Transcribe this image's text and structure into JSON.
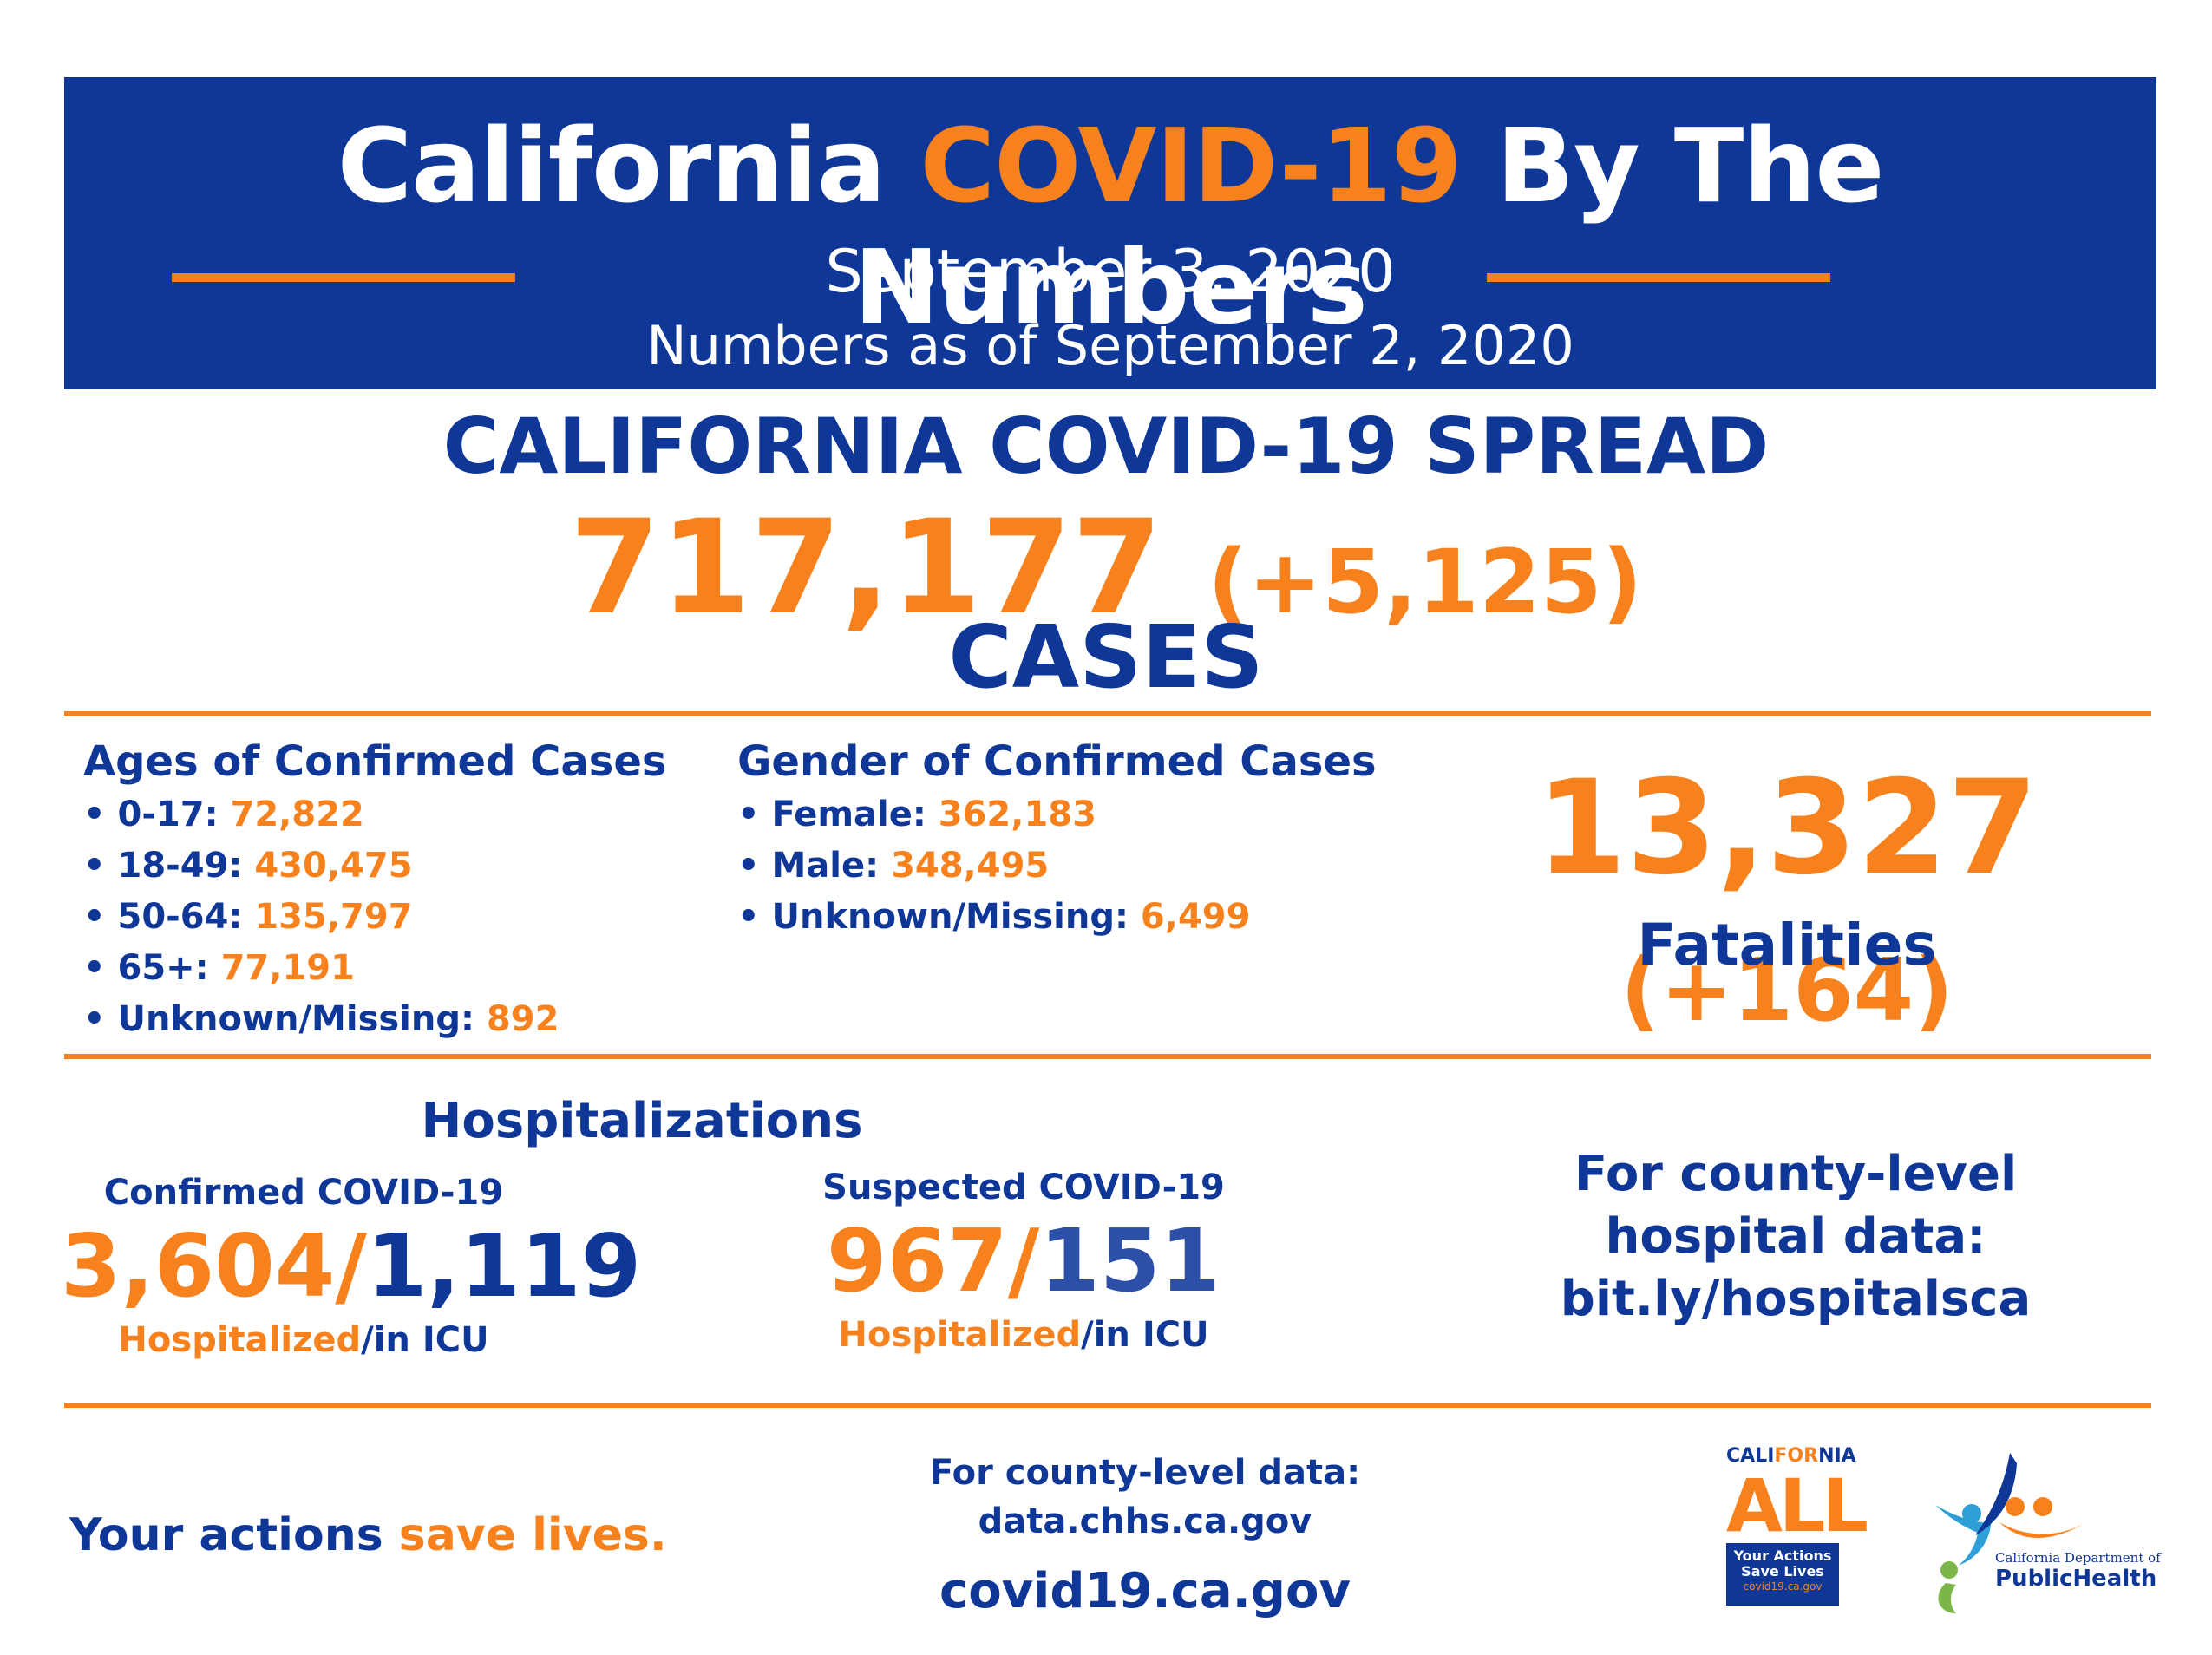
{
  "header": {
    "title_part1": "California ",
    "title_highlight": "COVID-19",
    "title_part2": " By The Numbers",
    "date": "September 3, 2020",
    "as_of": "Numbers as of September 2, 2020"
  },
  "spread": {
    "title": "CALIFORNIA COVID-19 SPREAD",
    "cases": "717,177",
    "cases_delta": "(+5,125)",
    "cases_label": "CASES"
  },
  "ages": {
    "title": "Ages of Confirmed Cases",
    "items": [
      {
        "label": "• 0-17: ",
        "value": "72,822"
      },
      {
        "label": "• 18-49: ",
        "value": "430,475"
      },
      {
        "label": "• 50-64: ",
        "value": "135,797"
      },
      {
        "label": "• 65+: ",
        "value": "77,191"
      },
      {
        "label": "• Unknown/Missing: ",
        "value": "892"
      }
    ]
  },
  "gender": {
    "title": "Gender of Confirmed Cases",
    "items": [
      {
        "label": "• Female: ",
        "value": "362,183"
      },
      {
        "label": "• Male: ",
        "value": "348,495"
      },
      {
        "label": "• Unknown/Missing: ",
        "value": "6,499"
      }
    ]
  },
  "fatalities": {
    "count": "13,327",
    "delta": "(+164)",
    "label": "Fatalities"
  },
  "hospitalizations": {
    "title": "Hospitalizations",
    "confirmed": {
      "subtitle": "Confirmed COVID-19",
      "hospitalized": "3,604",
      "separator": "/",
      "icu": "1,119",
      "label_hosp": "Hospitalized",
      "label_icu": "/in ICU"
    },
    "suspected": {
      "subtitle": "Suspected COVID-19",
      "hospitalized": "967",
      "separator": "/",
      "icu": "151",
      "label_hosp": "Hospitalized",
      "label_icu": "/in ICU"
    },
    "county_line1": "For county-level",
    "county_line2": "hospital data:",
    "county_link": "bit.ly/hospitalsca"
  },
  "footer": {
    "actions_part1": "Your actions ",
    "actions_part2": "save lives.",
    "county_data_line1": "For county-level data:",
    "county_data_line2": "data.chhs.ca.gov",
    "site": "covid19.ca.gov",
    "ca_all_top_a": "CALI",
    "ca_all_top_b": "FOR",
    "ca_all_top_c": "NIA",
    "ca_all_word": "ALL",
    "ca_all_box_line1": "Your Actions",
    "ca_all_box_line2": "Save Lives",
    "ca_all_box_url": "covid19.ca.gov",
    "cdph_line1": "California Department of",
    "cdph_line2": "PublicHealth"
  },
  "colors": {
    "blue": "#0f3797",
    "orange": "#f7821d",
    "cdph_green": "#7ab648",
    "cdph_lightblue": "#2f9fd8"
  }
}
